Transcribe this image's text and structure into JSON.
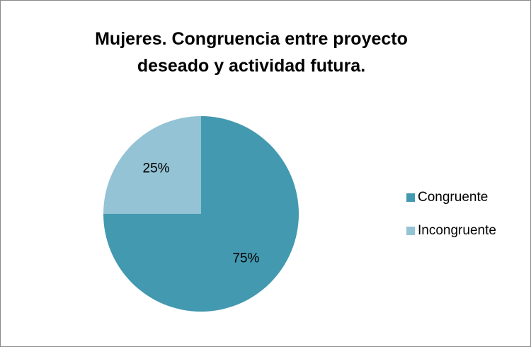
{
  "chart_data": {
    "type": "pie",
    "title": "Mujeres. Congruencia entre proyecto deseado y actividad futura.",
    "categories": [
      "Congruente",
      "Incongruente"
    ],
    "values": [
      75,
      25
    ],
    "value_labels": [
      "75%",
      "25%"
    ],
    "colors": [
      "#4399b0",
      "#93c3d4"
    ],
    "legend": "right"
  }
}
